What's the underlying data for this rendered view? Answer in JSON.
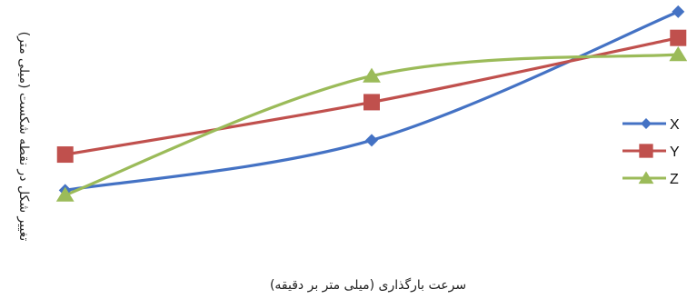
{
  "chart_data": {
    "type": "line",
    "title": "",
    "xlabel": "سرعت بارگذاری (میلی متر بر دقیقه)",
    "ylabel": "تغییر شکل در نقطه شکست (میلی متر)",
    "categories": [
      "",
      "",
      ""
    ],
    "x": [
      1,
      2,
      3
    ],
    "xlim": [
      0.9,
      3.1
    ],
    "ylim": [
      0,
      1.0
    ],
    "grid": false,
    "legend_position": "right",
    "series": [
      {
        "name": "X",
        "color": "#4472C4",
        "marker": "diamond",
        "values": [
          0.22,
          0.43,
          0.97
        ]
      },
      {
        "name": "Y",
        "color": "#C0504D",
        "marker": "square",
        "values": [
          0.37,
          0.59,
          0.86
        ]
      },
      {
        "name": "Z",
        "color": "#9BBB59",
        "marker": "triangle",
        "values": [
          0.2,
          0.7,
          0.79
        ]
      }
    ]
  }
}
